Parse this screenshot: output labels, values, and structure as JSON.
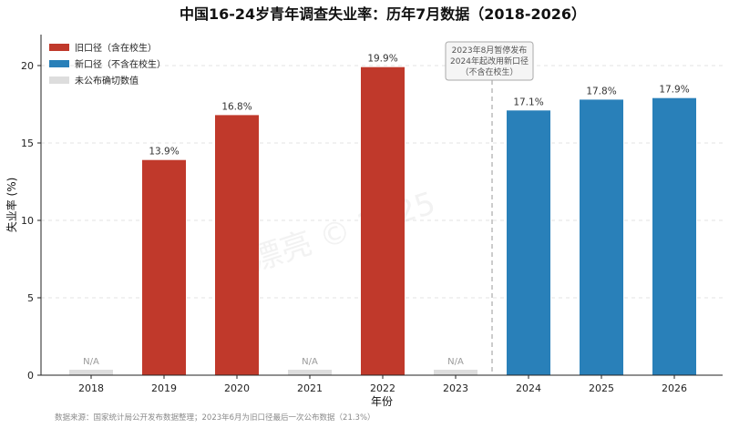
{
  "chart_data": {
    "type": "bar",
    "title": "中国16-24岁青年调查失业率：历年7月数据（2018-2026）",
    "xlabel": "年份",
    "ylabel": "失业率 (%)",
    "ylim": [
      0,
      22
    ],
    "yticks": [
      0,
      5,
      10,
      15,
      20
    ],
    "grid": "horizontal-dashed",
    "legend_position": "top-left",
    "categories": [
      "2018",
      "2019",
      "2020",
      "2021",
      "2022",
      "2023",
      "2024",
      "2025",
      "2026"
    ],
    "values": [
      null,
      13.9,
      16.8,
      null,
      19.9,
      null,
      17.1,
      17.8,
      17.9
    ],
    "value_labels": [
      "N/A",
      "13.9%",
      "16.8%",
      "N/A",
      "19.9%",
      "N/A",
      "17.1%",
      "17.8%",
      "17.9%"
    ],
    "series_by_category": [
      "unpublished",
      "old",
      "old",
      "unpublished",
      "old",
      "unpublished",
      "new",
      "new",
      "new"
    ],
    "series": [
      {
        "key": "old",
        "name": "旧口径（含在校生）",
        "color": "#c0392b"
      },
      {
        "key": "new",
        "name": "新口径（不含在校生）",
        "color": "#2980b9"
      },
      {
        "key": "unpublished",
        "name": "未公布确切数值",
        "color": "#dddddd"
      }
    ],
    "divider_after_category": "2023",
    "annotation": {
      "lines": [
        "2023年8月暂停发布",
        "2024年起改用新口径",
        "（不含在校生）"
      ]
    },
    "source": "数据来源：国家统计局公开发布数据整理；2023年6月为旧口径最后一次公布数据（21.3%）"
  }
}
